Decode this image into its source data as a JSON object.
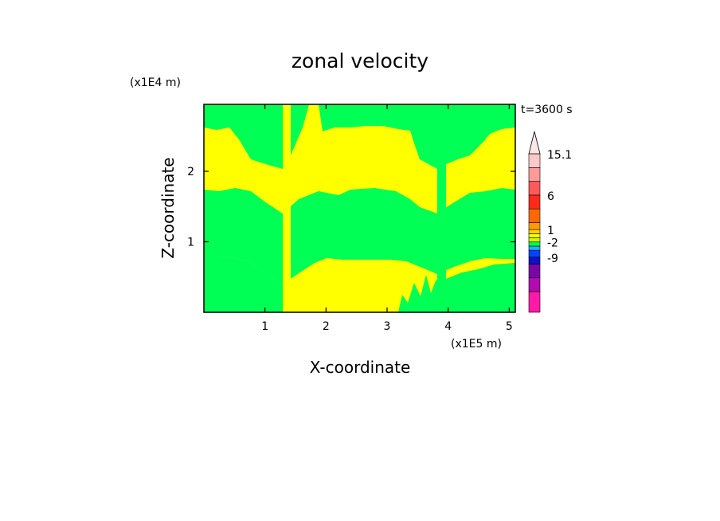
{
  "chart_data": {
    "type": "heatmap",
    "title": "zonal velocity",
    "xlabel": "X-coordinate",
    "ylabel": "Z-coordinate",
    "x_unit": "(x1E5 m)",
    "y_unit": "(x1E4 m)",
    "time_label": "t=3600 s",
    "xlim": [
      0,
      5.1
    ],
    "ylim": [
      0,
      2.95
    ],
    "x_ticks": [
      1,
      2,
      3,
      4,
      5
    ],
    "y_ticks": [
      1,
      2
    ],
    "background_color": "#ffff00",
    "field_color": "#00ff55",
    "colorbar": {
      "bands": [
        "#ff1aa8",
        "#b00cb0",
        "#7a06a8",
        "#1010c8",
        "#0044ff",
        "#1cb4ff",
        "#00ff55",
        "#c8ff00",
        "#ffff00",
        "#ffd000",
        "#ff9a00",
        "#ff6a00",
        "#ff2a1a",
        "#ff5a5a",
        "#ff9a9a",
        "#ffc8c8"
      ],
      "band_heights": [
        3,
        2,
        2,
        1,
        1,
        0.6,
        0.6,
        0.6,
        0.6,
        0.6,
        1,
        2,
        2,
        2,
        2,
        2
      ],
      "arrow_color": "#ffe6e6",
      "labels": [
        {
          "text": "15.1",
          "value": 15.1,
          "band_top": 15
        },
        {
          "text": "6",
          "value": 6,
          "band_top": 12
        },
        {
          "text": "1",
          "value": 1,
          "band_top": 9
        },
        {
          "text": "-2",
          "value": -2,
          "band_top": 6
        },
        {
          "text": "-9",
          "value": -9,
          "band_top": 3
        }
      ]
    }
  }
}
